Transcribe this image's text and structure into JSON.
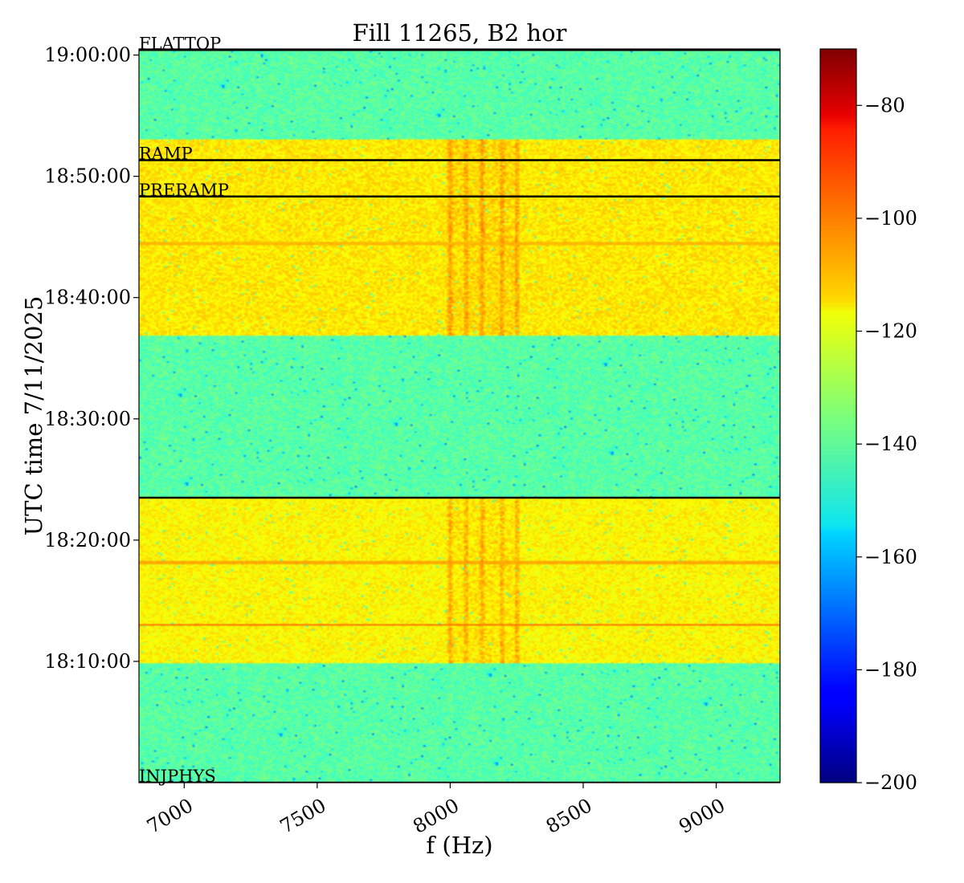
{
  "chart_data": {
    "type": "heatmap",
    "title": "Fill 11265, B2 hor",
    "xlabel": "f (Hz)",
    "ylabel": "UTC time 7/11/2025",
    "xlim": [
      6830,
      9240
    ],
    "ylim": [
      "18:00:00",
      "19:00:30"
    ],
    "x_ticks": [
      {
        "value": 7000,
        "label": "7000"
      },
      {
        "value": 7500,
        "label": "7500"
      },
      {
        "value": 8000,
        "label": "8000"
      },
      {
        "value": 8500,
        "label": "8500"
      },
      {
        "value": 9000,
        "label": "9000"
      }
    ],
    "y_ticks": [
      {
        "value": "18:10:00",
        "label": "18:10:00"
      },
      {
        "value": "18:20:00",
        "label": "18:20:00"
      },
      {
        "value": "18:30:00",
        "label": "18:30:00"
      },
      {
        "value": "18:40:00",
        "label": "18:40:00"
      },
      {
        "value": "18:50:00",
        "label": "18:50:00"
      },
      {
        "value": "19:00:00",
        "label": "19:00:00"
      }
    ],
    "colormap": "jet",
    "colorbar": {
      "range": [
        -200,
        -70
      ],
      "ticks": [
        {
          "value": -80,
          "label": "−80"
        },
        {
          "value": -100,
          "label": "−100"
        },
        {
          "value": -120,
          "label": "−120"
        },
        {
          "value": -140,
          "label": "−140"
        },
        {
          "value": -160,
          "label": "−160"
        },
        {
          "value": -180,
          "label": "−180"
        },
        {
          "value": -200,
          "label": "−200"
        }
      ]
    },
    "background_level_db": -140,
    "bands": [
      {
        "start": "18:09:50",
        "end": "18:23:30",
        "level_db": -118
      },
      {
        "start": "18:36:50",
        "end": "18:53:00",
        "level_db": -116
      }
    ],
    "spectral_lines_hz": [
      8000,
      8060,
      8120,
      8195,
      8250
    ],
    "horizontal_artifacts": [
      {
        "time": "18:13:00",
        "level_db": -102
      },
      {
        "time": "18:18:10",
        "level_db": -108
      },
      {
        "time": "18:44:30",
        "level_db": -110
      }
    ],
    "events": [
      {
        "label": "FLATTOP",
        "time": "19:00:25"
      },
      {
        "label": "RAMP",
        "time": "18:51:20"
      },
      {
        "label": "PRERAMP",
        "time": "18:48:20"
      },
      {
        "label": "",
        "time": "18:23:30"
      },
      {
        "label": "INJPHYS",
        "time": "18:00:00"
      }
    ]
  }
}
